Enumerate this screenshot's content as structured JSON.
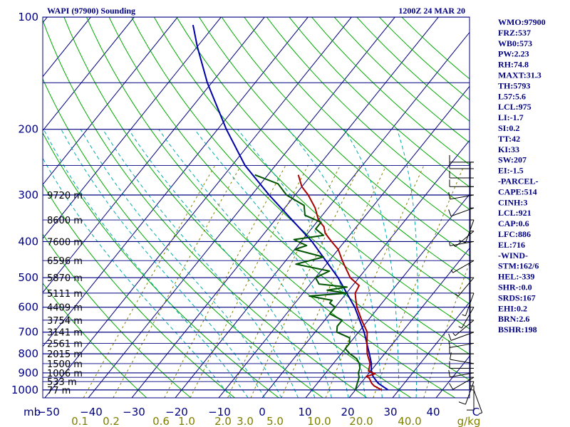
{
  "header": {
    "title": "WAPI (97900) Sounding",
    "time": "1200Z 24 MAR 20"
  },
  "indices": [
    "WMO:97900",
    "FRZ:537",
    "WB0:573",
    "PW:2.23",
    "RH:74.8",
    "MAXT:31.3",
    "TH:5793",
    "L57:5.6",
    "LCL:975",
    "LI:-1.7",
    "SI:0.2",
    "TT:42",
    "KI:33",
    "SW:207",
    "EI:-1.5",
    "-PARCEL-",
    "CAPE:514",
    "CINH:3",
    "LCL:921",
    "CAP:0.6",
    "LFC:886",
    "EL:716",
    "-WIND-",
    "STM:162/6",
    "HEL:-339",
    "SHR-:0.0",
    "SRDS:167",
    "EHI:0.2",
    "BRN:2.6",
    "BSHR:198"
  ],
  "colors": {
    "frame": "#000080",
    "isobar": "#000080",
    "isotherm": "#000080",
    "dry_adiabat": "#00aa00",
    "moist_adiabat": "#00aaaa",
    "mixing_ratio": "#808000",
    "temperature": "#aa0000",
    "dewpoint": "#005500",
    "parcel": "#0000aa",
    "wind_barb": "#000000"
  },
  "chart_data": {
    "type": "skew-t",
    "pressure_axis": {
      "label": "mb",
      "unit": "hPa",
      "log_scale": true,
      "range": [
        1000,
        100
      ],
      "ticks": [
        100,
        200,
        300,
        400,
        500,
        600,
        700,
        800,
        900,
        1000
      ]
    },
    "temperature_axis": {
      "unit": "C",
      "range": [
        -50,
        50
      ],
      "skewed": true,
      "ticks": [
        "−50",
        "−40",
        "−30",
        "−20",
        "−10",
        "0",
        "10",
        "20",
        "30",
        "40",
        "C"
      ]
    },
    "mixing_ratio_axis": {
      "unit": "g/kg",
      "ticks": [
        "0.1",
        "0.2",
        "0.6",
        "1.0",
        "2.0",
        "3.0",
        "5.0",
        "10.0",
        "20.0",
        "40.0",
        "g/kg"
      ]
    },
    "mixing_ratio_values": [
      0.1,
      0.2,
      0.6,
      1,
      2,
      3,
      5,
      10,
      20,
      40
    ],
    "height_labels": [
      {
        "p": 300,
        "text": "9720 m"
      },
      {
        "p": 350,
        "text": "8600 m"
      },
      {
        "p": 400,
        "text": "7600 m"
      },
      {
        "p": 450,
        "text": "6596 m"
      },
      {
        "p": 500,
        "text": "5870 m"
      },
      {
        "p": 550,
        "text": "5111 m"
      },
      {
        "p": 600,
        "text": "4409 m"
      },
      {
        "p": 650,
        "text": "3754 m"
      },
      {
        "p": 700,
        "text": "3141 m"
      },
      {
        "p": 750,
        "text": "2561 m"
      },
      {
        "p": 800,
        "text": "2015 m"
      },
      {
        "p": 850,
        "text": "1500 m"
      },
      {
        "p": 900,
        "text": "1006 m"
      },
      {
        "p": 950,
        "text": "533 m"
      },
      {
        "p": 1000,
        "text": "77 m"
      }
    ],
    "temperature_profile": [
      [
        1000,
        26
      ],
      [
        990,
        25
      ],
      [
        975,
        23.5
      ],
      [
        960,
        22.5
      ],
      [
        950,
        22
      ],
      [
        930,
        21
      ],
      [
        920,
        20
      ],
      [
        905,
        21.5
      ],
      [
        890,
        19.5
      ],
      [
        870,
        19
      ],
      [
        850,
        18.5
      ],
      [
        800,
        16
      ],
      [
        750,
        14
      ],
      [
        700,
        12
      ],
      [
        650,
        8.5
      ],
      [
        600,
        5
      ],
      [
        575,
        3.5
      ],
      [
        550,
        2
      ],
      [
        525,
        1.5
      ],
      [
        500,
        -2
      ],
      [
        450,
        -7
      ],
      [
        420,
        -10
      ],
      [
        400,
        -13
      ],
      [
        380,
        -16
      ],
      [
        365,
        -17.5
      ],
      [
        350,
        -20
      ],
      [
        325,
        -23
      ],
      [
        300,
        -27
      ],
      [
        285,
        -30
      ],
      [
        265,
        -33
      ]
    ],
    "dewpoint_profile": [
      [
        1000,
        20
      ],
      [
        975,
        19.5
      ],
      [
        950,
        19
      ],
      [
        925,
        18.5
      ],
      [
        900,
        17.5
      ],
      [
        875,
        17
      ],
      [
        850,
        16
      ],
      [
        825,
        14.5
      ],
      [
        800,
        12
      ],
      [
        775,
        10
      ],
      [
        750,
        10
      ],
      [
        725,
        9
      ],
      [
        700,
        5
      ],
      [
        675,
        4
      ],
      [
        650,
        4
      ],
      [
        625,
        0
      ],
      [
        600,
        0
      ],
      [
        585,
        -2
      ],
      [
        575,
        -2
      ],
      [
        560,
        -8
      ],
      [
        550,
        0
      ],
      [
        540,
        -5
      ],
      [
        530,
        -1
      ],
      [
        520,
        -8
      ],
      [
        500,
        -10
      ],
      [
        480,
        -8
      ],
      [
        460,
        -17
      ],
      [
        440,
        -12
      ],
      [
        420,
        -20
      ],
      [
        410,
        -18
      ],
      [
        395,
        -22
      ],
      [
        385,
        -16
      ],
      [
        370,
        -19
      ],
      [
        355,
        -19
      ],
      [
        340,
        -24
      ],
      [
        320,
        -26
      ],
      [
        300,
        -32
      ],
      [
        280,
        -36
      ],
      [
        265,
        -43
      ]
    ],
    "parcel_profile": [
      [
        1000,
        27.5
      ],
      [
        960,
        24
      ],
      [
        921,
        21.6
      ],
      [
        886,
        20
      ],
      [
        850,
        18.8
      ],
      [
        800,
        16.5
      ],
      [
        700,
        11.3
      ],
      [
        600,
        4.5
      ],
      [
        500,
        -4.8
      ],
      [
        400,
        -17.5
      ],
      [
        300,
        -36
      ],
      [
        250,
        -47
      ],
      [
        200,
        -58
      ],
      [
        150,
        -71
      ],
      [
        120,
        -80
      ],
      [
        105,
        -85
      ]
    ],
    "wind_barbs": [
      {
        "p": 1000,
        "dir": 160,
        "kt": 5
      },
      {
        "p": 975,
        "dir": 180,
        "kt": 10
      },
      {
        "p": 950,
        "dir": 200,
        "kt": 10
      },
      {
        "p": 925,
        "dir": 240,
        "kt": 10
      },
      {
        "p": 900,
        "dir": 260,
        "kt": 10
      },
      {
        "p": 875,
        "dir": 270,
        "kt": 10
      },
      {
        "p": 850,
        "dir": 280,
        "kt": 10
      },
      {
        "p": 800,
        "dir": 270,
        "kt": 10
      },
      {
        "p": 750,
        "dir": 260,
        "kt": 10
      },
      {
        "p": 700,
        "dir": 250,
        "kt": 10
      },
      {
        "p": 650,
        "dir": 230,
        "kt": 5
      },
      {
        "p": 600,
        "dir": 210,
        "kt": 5
      },
      {
        "p": 550,
        "dir": 200,
        "kt": 5
      },
      {
        "p": 500,
        "dir": 220,
        "kt": 5
      },
      {
        "p": 450,
        "dir": 240,
        "kt": 5
      },
      {
        "p": 400,
        "dir": 260,
        "kt": 5
      },
      {
        "p": 375,
        "dir": 230,
        "kt": 5
      },
      {
        "p": 350,
        "dir": 200,
        "kt": 10
      },
      {
        "p": 325,
        "dir": 250,
        "kt": 10
      },
      {
        "p": 300,
        "dir": 260,
        "kt": 10
      },
      {
        "p": 285,
        "dir": 270,
        "kt": 10
      },
      {
        "p": 270,
        "dir": 270,
        "kt": 10
      },
      {
        "p": 255,
        "dir": 270,
        "kt": 10
      },
      {
        "p": 245,
        "dir": 270,
        "kt": 10
      }
    ]
  }
}
